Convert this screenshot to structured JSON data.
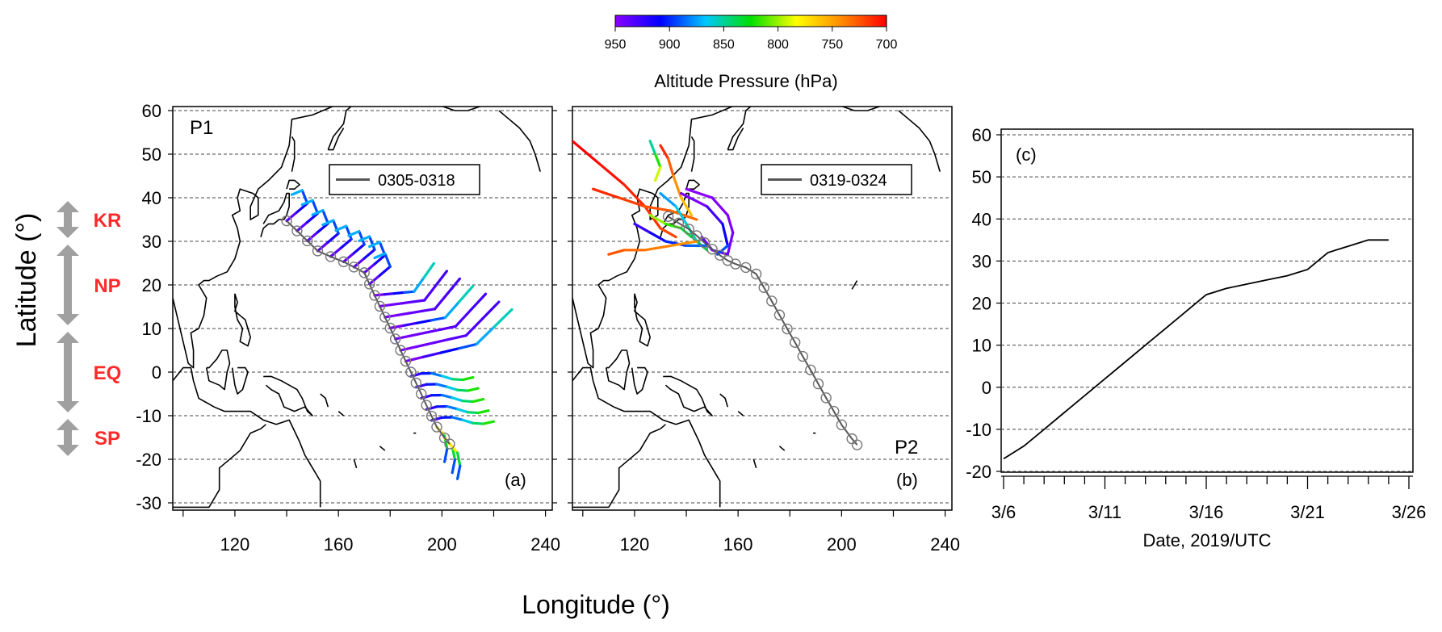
{
  "colorbar": {
    "title": "Altitude Pressure (hPa)",
    "ticks": [
      "950",
      "900",
      "850",
      "800",
      "750",
      "700"
    ],
    "colors": [
      "#8b00ff",
      "#0000ff",
      "#00c8ff",
      "#00e000",
      "#ffff00",
      "#ff8c00",
      "#ff0000"
    ]
  },
  "y_axis_label": "Latitude (°)",
  "x_axis_label": "Longitude (°)",
  "regions": [
    {
      "label": "KR",
      "lat_range": [
        30,
        40
      ]
    },
    {
      "label": "NP",
      "lat_range": [
        10,
        30
      ]
    },
    {
      "label": "EQ",
      "lat_range": [
        -10,
        10
      ]
    },
    {
      "label": "SP",
      "lat_range": [
        -20,
        -10
      ]
    }
  ],
  "region_color": "#ff2a2a",
  "arrow_color": "#a0a0a0",
  "map_lat_ticks": [
    "60",
    "50",
    "40",
    "30",
    "20",
    "10",
    "0",
    "-10",
    "-20",
    "-30"
  ],
  "map_lon_ticks": [
    "120",
    "160",
    "200",
    "240"
  ],
  "panels": {
    "a": {
      "name": "P1",
      "tag": "(a)",
      "legend": "0305-0318"
    },
    "b": {
      "name": "P2",
      "tag": "(b)",
      "legend": "0319-0324"
    },
    "c": {
      "tag": "(c)",
      "xlabel": "Date, 2019/UTC"
    }
  },
  "chart_data": [
    {
      "type": "scatter",
      "panel": "(a)",
      "xlabel": "Longitude (°)",
      "ylabel": "Latitude (°)",
      "xlim": [
        96,
        242
      ],
      "ylim": [
        -31,
        61
      ],
      "grid": "horizontal dashed",
      "series": [
        {
          "name": "0305-0318",
          "track": [
            [
              140,
              34.7
            ],
            [
              144,
              32.4
            ],
            [
              148,
              30.1
            ],
            [
              152,
              27.8
            ],
            [
              157,
              26.5
            ],
            [
              162,
              25.3
            ],
            [
              166,
              24.1
            ],
            [
              170,
              22.8
            ],
            [
              172,
              20.2
            ],
            [
              174,
              17.6
            ],
            [
              176,
              15.1
            ],
            [
              178,
              12.6
            ],
            [
              180,
              10.1
            ],
            [
              182,
              7.6
            ],
            [
              184,
              5.0
            ],
            [
              186,
              2.5
            ],
            [
              188,
              0.0
            ],
            [
              190,
              -2.5
            ],
            [
              192,
              -5.0
            ],
            [
              194,
              -7.6
            ],
            [
              196,
              -10.1
            ],
            [
              198,
              -12.6
            ],
            [
              201,
              -15.1
            ],
            [
              203,
              -16.5
            ]
          ]
        }
      ]
    },
    {
      "type": "scatter",
      "panel": "(b)",
      "xlabel": "Longitude (°)",
      "ylabel": "Latitude (°)",
      "xlim": [
        96,
        242
      ],
      "ylim": [
        -31,
        61
      ],
      "grid": "horizontal dashed",
      "series": [
        {
          "name": "0319-0324",
          "track": [
            [
              133,
              35.7
            ],
            [
              137,
              34.2
            ],
            [
              141,
              32.8
            ],
            [
              144,
              31.3
            ],
            [
              147,
              29.7
            ],
            [
              150,
              28.2
            ],
            [
              153,
              26.8
            ],
            [
              156,
              25.6
            ],
            [
              159,
              24.8
            ],
            [
              163,
              24.0
            ],
            [
              167,
              22.5
            ],
            [
              170,
              19.4
            ],
            [
              173,
              16.3
            ],
            [
              176,
              13.1
            ],
            [
              179,
              9.9
            ],
            [
              182,
              6.8
            ],
            [
              185,
              3.6
            ],
            [
              188,
              0.5
            ],
            [
              191,
              -2.7
            ],
            [
              194,
              -5.9
            ],
            [
              197,
              -9.0
            ],
            [
              200,
              -12.1
            ],
            [
              204,
              -15.3
            ],
            [
              206,
              -16.7
            ]
          ]
        }
      ]
    },
    {
      "type": "line",
      "panel": "(c)",
      "xlabel": "Date, 2019/UTC",
      "ylabel": "Latitude (°)",
      "x_ticks": [
        "3/6",
        "3/11",
        "3/16",
        "3/21",
        "3/26"
      ],
      "xlim": [
        "3/6",
        "3/26"
      ],
      "ylim": [
        -20,
        60
      ],
      "y_ticks": [
        60,
        50,
        40,
        30,
        20,
        10,
        0,
        -10,
        -20
      ],
      "grid": "horizontal dashed",
      "series": [
        {
          "x": [
            "3/6",
            "3/7",
            "3/8",
            "3/9",
            "3/10",
            "3/11",
            "3/12",
            "3/13",
            "3/14",
            "3/15",
            "3/16",
            "3/17",
            "3/18",
            "3/19",
            "3/20",
            "3/21",
            "3/22",
            "3/23",
            "3/24",
            "3/25"
          ],
          "y": [
            -17,
            -14,
            -10,
            -6,
            -2,
            2,
            6,
            10,
            14,
            18,
            22,
            23.5,
            24.5,
            25.5,
            26.5,
            28,
            32,
            33.5,
            35,
            35
          ]
        }
      ]
    }
  ]
}
